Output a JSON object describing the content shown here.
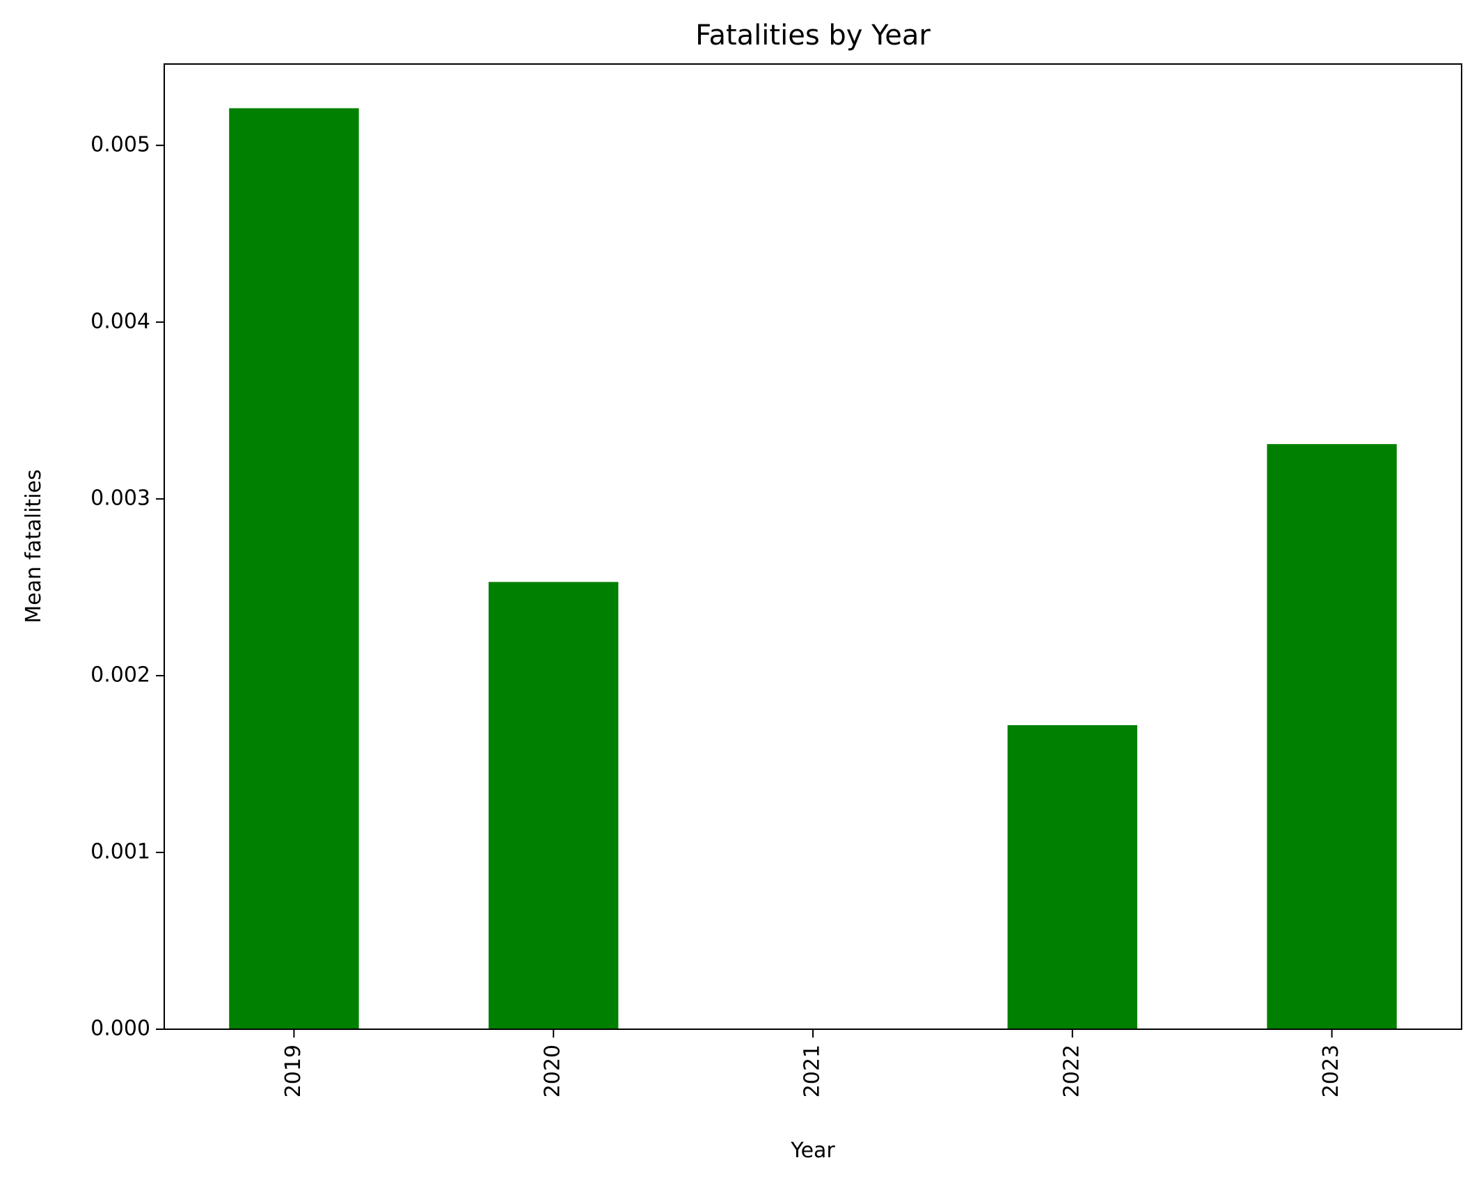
{
  "chart_data": {
    "type": "bar",
    "title": "Fatalities by Year",
    "xlabel": "Year",
    "ylabel": "Mean fatalities",
    "categories": [
      "2019",
      "2020",
      "2021",
      "2022",
      "2023"
    ],
    "values": [
      0.00521,
      0.00253,
      0.0,
      0.00172,
      0.00331
    ],
    "ylim": [
      0,
      0.00546
    ],
    "yticks": [
      "0.000",
      "0.001",
      "0.002",
      "0.003",
      "0.004",
      "0.005"
    ],
    "ytick_values": [
      0,
      0.001,
      0.002,
      0.003,
      0.004,
      0.005
    ],
    "bar_color": "#008000",
    "grid": false,
    "legend": false,
    "xtick_rotation": "vertical"
  }
}
